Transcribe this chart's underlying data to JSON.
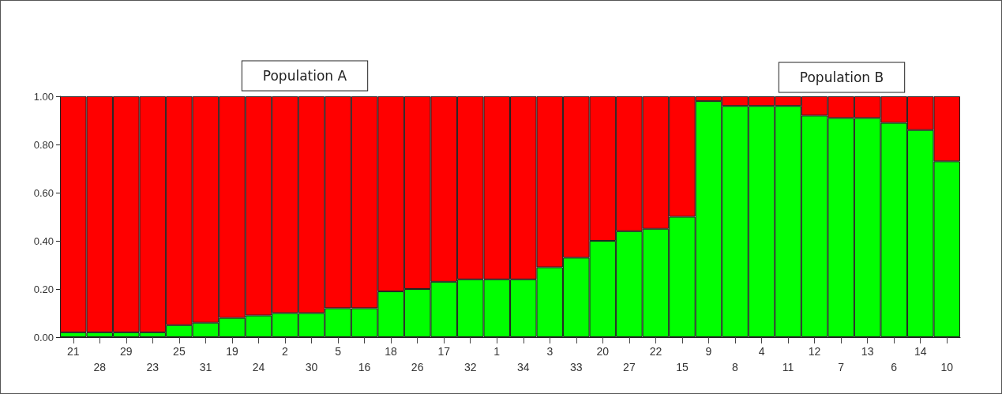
{
  "chart_data": {
    "type": "bar",
    "stacked": true,
    "categories": [
      "21",
      "28",
      "29",
      "23",
      "25",
      "31",
      "19",
      "24",
      "2",
      "30",
      "5",
      "16",
      "18",
      "26",
      "17",
      "32",
      "1",
      "34",
      "3",
      "33",
      "20",
      "27",
      "22",
      "15",
      "9",
      "8",
      "4",
      "11",
      "12",
      "7",
      "13",
      "6",
      "14",
      "10"
    ],
    "series": [
      {
        "color": "#00ff00",
        "values": [
          0.02,
          0.02,
          0.02,
          0.02,
          0.05,
          0.06,
          0.08,
          0.09,
          0.1,
          0.1,
          0.12,
          0.12,
          0.19,
          0.2,
          0.23,
          0.24,
          0.24,
          0.24,
          0.29,
          0.33,
          0.4,
          0.44,
          0.45,
          0.5,
          0.98,
          0.96,
          0.96,
          0.96,
          0.92,
          0.91,
          0.91,
          0.89,
          0.86,
          0.73
        ]
      },
      {
        "color": "#ff0000",
        "values": [
          0.98,
          0.98,
          0.98,
          0.98,
          0.95,
          0.94,
          0.92,
          0.91,
          0.9,
          0.9,
          0.88,
          0.88,
          0.81,
          0.8,
          0.77,
          0.76,
          0.76,
          0.76,
          0.71,
          0.67,
          0.6,
          0.56,
          0.55,
          0.5,
          0.02,
          0.04,
          0.04,
          0.04,
          0.08,
          0.09,
          0.09,
          0.11,
          0.14,
          0.27
        ]
      }
    ],
    "ylim": [
      0,
      1
    ],
    "yticks": [
      {
        "value": 0,
        "label": "0.00"
      },
      {
        "value": 0.2,
        "label": "0.20"
      },
      {
        "value": 0.4,
        "label": "0.40"
      },
      {
        "value": 0.6,
        "label": "0.60"
      },
      {
        "value": 0.8,
        "label": "0.80"
      },
      {
        "value": 1,
        "label": "1.00"
      }
    ],
    "annotations": [
      "Population A",
      "Population B"
    ],
    "grid": false
  }
}
